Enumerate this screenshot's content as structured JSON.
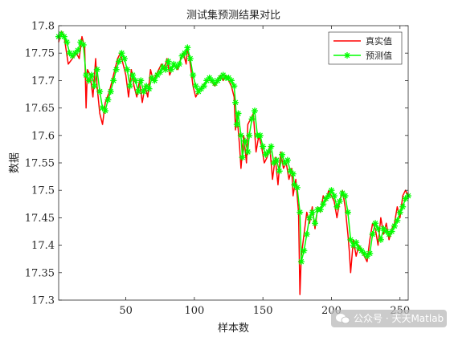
{
  "chart_data": {
    "type": "line",
    "title": "测试集预测结果对比",
    "xlabel": "样本数",
    "ylabel": "数据",
    "xlim": [
      1,
      256
    ],
    "ylim": [
      17.3,
      17.8
    ],
    "xticks": [
      50,
      100,
      150,
      200,
      250
    ],
    "yticks": [
      17.3,
      17.35,
      17.4,
      17.45,
      17.5,
      17.55,
      17.6,
      17.65,
      17.7,
      17.75,
      17.8
    ],
    "ytick_labels": [
      "17.3",
      "17.35",
      "17.4",
      "17.45",
      "17.5",
      "17.55",
      "17.6",
      "17.65",
      "17.7",
      "17.75",
      "17.8"
    ],
    "legend_position": "top-right",
    "grid": false,
    "series": [
      {
        "name": "真实值",
        "color": "#ff0000",
        "marker": "none",
        "points": [
          [
            1,
            17.77
          ],
          [
            3,
            17.79
          ],
          [
            5,
            17.78
          ],
          [
            8,
            17.73
          ],
          [
            11,
            17.74
          ],
          [
            14,
            17.75
          ],
          [
            16,
            17.74
          ],
          [
            18,
            17.78
          ],
          [
            20,
            17.76
          ],
          [
            21,
            17.65
          ],
          [
            22,
            17.72
          ],
          [
            24,
            17.71
          ],
          [
            26,
            17.67
          ],
          [
            28,
            17.74
          ],
          [
            29,
            17.69
          ],
          [
            31,
            17.64
          ],
          [
            33,
            17.62
          ],
          [
            35,
            17.66
          ],
          [
            38,
            17.68
          ],
          [
            40,
            17.7
          ],
          [
            42,
            17.72
          ],
          [
            44,
            17.74
          ],
          [
            46,
            17.75
          ],
          [
            48,
            17.73
          ],
          [
            50,
            17.71
          ],
          [
            52,
            17.67
          ],
          [
            54,
            17.72
          ],
          [
            56,
            17.69
          ],
          [
            58,
            17.67
          ],
          [
            60,
            17.7
          ],
          [
            62,
            17.66
          ],
          [
            64,
            17.69
          ],
          [
            66,
            17.67
          ],
          [
            68,
            17.72
          ],
          [
            70,
            17.7
          ],
          [
            72,
            17.71
          ],
          [
            74,
            17.72
          ],
          [
            76,
            17.73
          ],
          [
            78,
            17.72
          ],
          [
            80,
            17.74
          ],
          [
            82,
            17.71
          ],
          [
            85,
            17.73
          ],
          [
            88,
            17.72
          ],
          [
            90,
            17.74
          ],
          [
            92,
            17.75
          ],
          [
            94,
            17.73
          ],
          [
            95,
            17.76
          ],
          [
            97,
            17.73
          ],
          [
            99,
            17.69
          ],
          [
            101,
            17.67
          ],
          [
            103,
            17.68
          ],
          [
            106,
            17.69
          ],
          [
            109,
            17.7
          ],
          [
            112,
            17.7
          ],
          [
            115,
            17.69
          ],
          [
            117,
            17.7
          ],
          [
            119,
            17.71
          ],
          [
            121,
            17.7
          ],
          [
            123,
            17.71
          ],
          [
            125,
            17.7
          ],
          [
            127,
            17.69
          ],
          [
            129,
            17.67
          ],
          [
            130,
            17.61
          ],
          [
            131,
            17.64
          ],
          [
            133,
            17.58
          ],
          [
            134,
            17.54
          ],
          [
            136,
            17.6
          ],
          [
            138,
            17.55
          ],
          [
            139,
            17.62
          ],
          [
            141,
            17.63
          ],
          [
            143,
            17.64
          ],
          [
            145,
            17.57
          ],
          [
            147,
            17.6
          ],
          [
            149,
            17.58
          ],
          [
            151,
            17.55
          ],
          [
            153,
            17.56
          ],
          [
            155,
            17.58
          ],
          [
            157,
            17.52
          ],
          [
            159,
            17.56
          ],
          [
            161,
            17.51
          ],
          [
            163,
            17.57
          ],
          [
            165,
            17.54
          ],
          [
            167,
            17.55
          ],
          [
            169,
            17.52
          ],
          [
            171,
            17.54
          ],
          [
            172,
            17.49
          ],
          [
            174,
            17.52
          ],
          [
            176,
            17.46
          ],
          [
            177,
            17.31
          ],
          [
            178,
            17.38
          ],
          [
            180,
            17.42
          ],
          [
            182,
            17.46
          ],
          [
            184,
            17.44
          ],
          [
            186,
            17.47
          ],
          [
            188,
            17.43
          ],
          [
            190,
            17.47
          ],
          [
            192,
            17.46
          ],
          [
            194,
            17.49
          ],
          [
            196,
            17.48
          ],
          [
            198,
            17.5
          ],
          [
            200,
            17.49
          ],
          [
            202,
            17.48
          ],
          [
            204,
            17.45
          ],
          [
            206,
            17.48
          ],
          [
            208,
            17.5
          ],
          [
            210,
            17.47
          ],
          [
            212,
            17.42
          ],
          [
            213,
            17.39
          ],
          [
            214,
            17.35
          ],
          [
            216,
            17.41
          ],
          [
            218,
            17.38
          ],
          [
            220,
            17.4
          ],
          [
            222,
            17.39
          ],
          [
            224,
            17.38
          ],
          [
            226,
            17.37
          ],
          [
            228,
            17.41
          ],
          [
            230,
            17.44
          ],
          [
            232,
            17.43
          ],
          [
            234,
            17.4
          ],
          [
            236,
            17.45
          ],
          [
            238,
            17.42
          ],
          [
            240,
            17.44
          ],
          [
            242,
            17.41
          ],
          [
            244,
            17.43
          ],
          [
            246,
            17.44
          ],
          [
            248,
            17.47
          ],
          [
            250,
            17.45
          ],
          [
            252,
            17.49
          ],
          [
            254,
            17.5
          ],
          [
            256,
            17.49
          ]
        ]
      },
      {
        "name": "预测值",
        "color": "#00ff00",
        "marker": "asterisk",
        "points": [
          [
            1,
            17.78
          ],
          [
            3,
            17.785
          ],
          [
            5,
            17.78
          ],
          [
            7,
            17.77
          ],
          [
            9,
            17.75
          ],
          [
            11,
            17.745
          ],
          [
            13,
            17.75
          ],
          [
            15,
            17.755
          ],
          [
            17,
            17.77
          ],
          [
            19,
            17.765
          ],
          [
            21,
            17.71
          ],
          [
            23,
            17.7
          ],
          [
            25,
            17.71
          ],
          [
            27,
            17.69
          ],
          [
            29,
            17.72
          ],
          [
            31,
            17.68
          ],
          [
            33,
            17.65
          ],
          [
            35,
            17.645
          ],
          [
            37,
            17.665
          ],
          [
            39,
            17.68
          ],
          [
            41,
            17.7
          ],
          [
            43,
            17.72
          ],
          [
            45,
            17.735
          ],
          [
            47,
            17.75
          ],
          [
            49,
            17.74
          ],
          [
            51,
            17.72
          ],
          [
            53,
            17.69
          ],
          [
            55,
            17.71
          ],
          [
            57,
            17.7
          ],
          [
            59,
            17.68
          ],
          [
            61,
            17.7
          ],
          [
            63,
            17.68
          ],
          [
            65,
            17.69
          ],
          [
            67,
            17.685
          ],
          [
            69,
            17.705
          ],
          [
            71,
            17.7
          ],
          [
            73,
            17.71
          ],
          [
            75,
            17.715
          ],
          [
            77,
            17.725
          ],
          [
            79,
            17.72
          ],
          [
            81,
            17.735
          ],
          [
            83,
            17.72
          ],
          [
            85,
            17.73
          ],
          [
            87,
            17.725
          ],
          [
            89,
            17.73
          ],
          [
            91,
            17.745
          ],
          [
            93,
            17.75
          ],
          [
            95,
            17.76
          ],
          [
            97,
            17.74
          ],
          [
            99,
            17.71
          ],
          [
            101,
            17.69
          ],
          [
            103,
            17.68
          ],
          [
            105,
            17.685
          ],
          [
            107,
            17.69
          ],
          [
            109,
            17.7
          ],
          [
            111,
            17.705
          ],
          [
            113,
            17.7
          ],
          [
            115,
            17.695
          ],
          [
            117,
            17.7
          ],
          [
            119,
            17.705
          ],
          [
            121,
            17.71
          ],
          [
            123,
            17.705
          ],
          [
            125,
            17.705
          ],
          [
            127,
            17.7
          ],
          [
            129,
            17.69
          ],
          [
            130,
            17.66
          ],
          [
            131,
            17.62
          ],
          [
            132,
            17.64
          ],
          [
            134,
            17.6
          ],
          [
            135,
            17.56
          ],
          [
            137,
            17.59
          ],
          [
            139,
            17.57
          ],
          [
            140,
            17.6
          ],
          [
            142,
            17.63
          ],
          [
            144,
            17.645
          ],
          [
            146,
            17.6
          ],
          [
            148,
            17.6
          ],
          [
            150,
            17.58
          ],
          [
            152,
            17.565
          ],
          [
            154,
            17.57
          ],
          [
            156,
            17.58
          ],
          [
            158,
            17.55
          ],
          [
            160,
            17.555
          ],
          [
            162,
            17.535
          ],
          [
            164,
            17.565
          ],
          [
            166,
            17.55
          ],
          [
            168,
            17.555
          ],
          [
            170,
            17.535
          ],
          [
            172,
            17.53
          ],
          [
            173,
            17.51
          ],
          [
            175,
            17.505
          ],
          [
            177,
            17.46
          ],
          [
            178,
            17.37
          ],
          [
            180,
            17.39
          ],
          [
            182,
            17.42
          ],
          [
            184,
            17.45
          ],
          [
            186,
            17.46
          ],
          [
            188,
            17.44
          ],
          [
            190,
            17.465
          ],
          [
            192,
            17.465
          ],
          [
            194,
            17.475
          ],
          [
            196,
            17.485
          ],
          [
            198,
            17.49
          ],
          [
            200,
            17.5
          ],
          [
            202,
            17.49
          ],
          [
            204,
            17.47
          ],
          [
            206,
            17.48
          ],
          [
            208,
            17.495
          ],
          [
            210,
            17.49
          ],
          [
            212,
            17.46
          ],
          [
            214,
            17.41
          ],
          [
            216,
            17.4
          ],
          [
            218,
            17.405
          ],
          [
            220,
            17.395
          ],
          [
            222,
            17.39
          ],
          [
            224,
            17.385
          ],
          [
            226,
            17.38
          ],
          [
            228,
            17.385
          ],
          [
            230,
            17.42
          ],
          [
            232,
            17.44
          ],
          [
            234,
            17.43
          ],
          [
            236,
            17.41
          ],
          [
            238,
            17.43
          ],
          [
            240,
            17.425
          ],
          [
            242,
            17.42
          ],
          [
            244,
            17.425
          ],
          [
            246,
            17.435
          ],
          [
            248,
            17.445
          ],
          [
            250,
            17.46
          ],
          [
            252,
            17.47
          ],
          [
            254,
            17.485
          ],
          [
            256,
            17.49
          ]
        ]
      }
    ]
  },
  "watermark": {
    "text": "公众号 · 天天Matlab"
  }
}
